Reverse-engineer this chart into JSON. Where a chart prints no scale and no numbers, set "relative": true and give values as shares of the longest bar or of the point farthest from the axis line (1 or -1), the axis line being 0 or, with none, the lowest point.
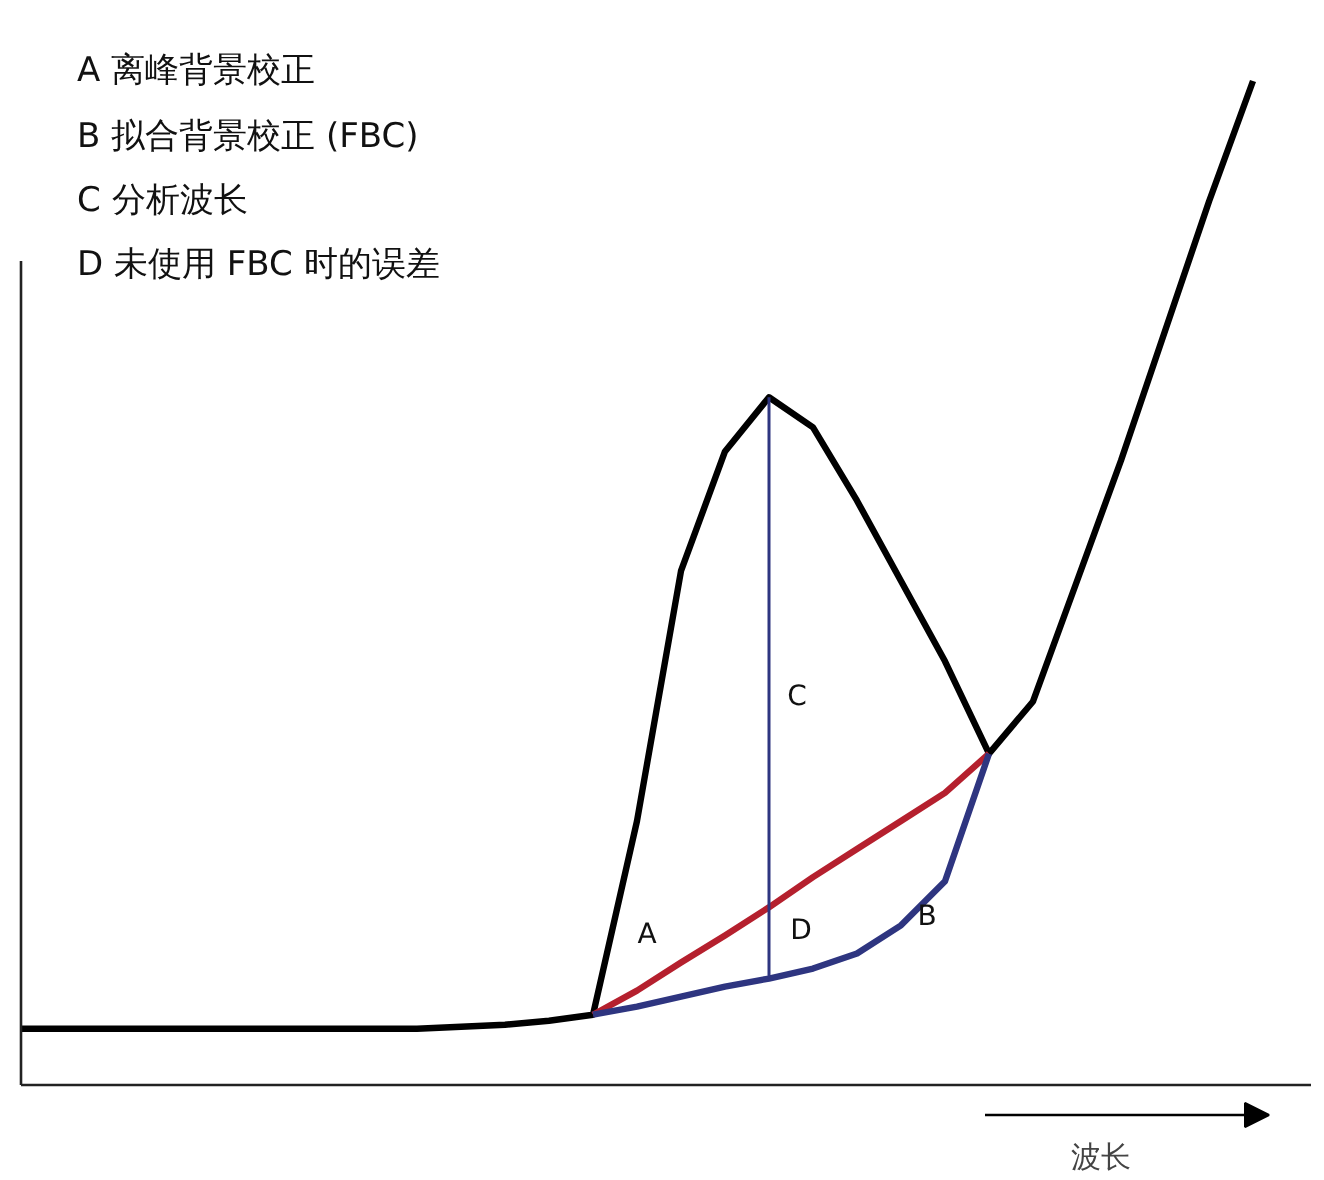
{
  "chart_data": {
    "type": "line",
    "relative": true,
    "xlabel": "波长",
    "categories": [
      null,
      null,
      null,
      null,
      null,
      null,
      null,
      null,
      null,
      null,
      null,
      null,
      null,
      null,
      null,
      null,
      null,
      null,
      null,
      null,
      null,
      null,
      null,
      null,
      null,
      null,
      null,
      null,
      null
    ],
    "series": [
      {
        "color": "#000000",
        "values": [
          0.056,
          0.056,
          0.056,
          0.056,
          0.056,
          0.056,
          0.056,
          0.056,
          0.056,
          0.056,
          0.058,
          0.06,
          0.064,
          0.07,
          0.263,
          0.512,
          0.631,
          0.685,
          0.655,
          0.582,
          0.502,
          0.422,
          0.33,
          0.382,
          0.502,
          0.622,
          0.751,
          0.88,
          1
        ]
      },
      {
        "color": "#b5202e",
        "values": [
          null,
          null,
          null,
          null,
          null,
          null,
          null,
          null,
          null,
          null,
          null,
          null,
          null,
          0.07,
          0.094,
          0.122,
          0.149,
          0.177,
          0.207,
          0.235,
          0.263,
          0.291,
          0.33,
          null,
          null,
          null,
          null,
          null,
          null
        ]
      },
      {
        "color": "#2e3580",
        "values": [
          null,
          null,
          null,
          null,
          null,
          null,
          null,
          null,
          null,
          null,
          null,
          null,
          null,
          0.07,
          0.078,
          0.088,
          0.098,
          0.106,
          0.116,
          0.131,
          0.159,
          0.203,
          0.33,
          null,
          null,
          null,
          null,
          null,
          null
        ]
      }
    ],
    "annotations": [
      "A 离峰背景校正",
      "B 拟合背景校正 (FBC)",
      "C 分析波长",
      "D 未使用 FBC 时的误差",
      "A",
      "B",
      "C",
      "D"
    ]
  }
}
